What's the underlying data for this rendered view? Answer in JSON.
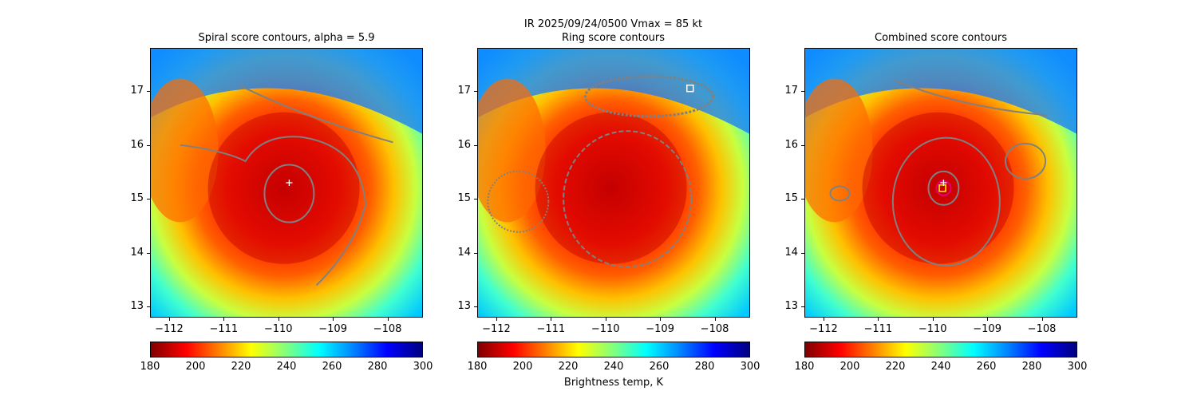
{
  "suptitle": {
    "line1": "IR  2025/09/24/0500    Vmax = 85 kt",
    "line2": "Ring score contours"
  },
  "colors": {
    "contour": "#808080",
    "marker_white": "#ffffff",
    "marker_magenta": "#e4007c",
    "marker_yellow": "#ffff00"
  },
  "chart_data": [
    {
      "type": "heatmap",
      "title": "Spiral score contours, alpha =  5.9",
      "xlim": [
        -112.35,
        -107.35
      ],
      "ylim": [
        12.8,
        17.8
      ],
      "xticks": [
        -112,
        -111,
        -110,
        -109,
        -108
      ],
      "yticks": [
        13,
        14,
        15,
        16,
        17
      ],
      "xticklabels": [
        "−112",
        "−111",
        "−110",
        "−109",
        "−108"
      ],
      "yticklabels": [
        "13",
        "14",
        "15",
        "16",
        "17"
      ],
      "colorbar": {
        "min": 180,
        "max": 300,
        "ticks": [
          180,
          200,
          220,
          240,
          260,
          280,
          300
        ],
        "colormap": "jet_r",
        "label": ""
      },
      "markers": [
        {
          "symbol": "+",
          "x": -109.8,
          "y": 15.3,
          "color": "white"
        }
      ]
    },
    {
      "type": "heatmap",
      "title": "",
      "xlim": [
        -112.35,
        -107.35
      ],
      "ylim": [
        12.8,
        17.8
      ],
      "xticks": [
        -112,
        -111,
        -110,
        -109,
        -108
      ],
      "yticks": [
        13,
        14,
        15,
        16,
        17
      ],
      "xticklabels": [
        "−112",
        "−111",
        "−110",
        "−109",
        "−108"
      ],
      "yticklabels": [
        "13",
        "14",
        "15",
        "16",
        "17"
      ],
      "colorbar": {
        "min": 180,
        "max": 300,
        "ticks": [
          180,
          200,
          220,
          240,
          260,
          280,
          300
        ],
        "colormap": "jet_r",
        "label": "Brightness temp, K"
      },
      "markers": [
        {
          "symbol": "square",
          "x": -108.45,
          "y": 17.05,
          "color": "white"
        }
      ]
    },
    {
      "type": "heatmap",
      "title": "Combined score contours",
      "xlim": [
        -112.35,
        -107.35
      ],
      "ylim": [
        12.8,
        17.8
      ],
      "xticks": [
        -112,
        -111,
        -110,
        -109,
        -108
      ],
      "yticks": [
        13,
        14,
        15,
        16,
        17
      ],
      "xticklabels": [
        "−112",
        "−111",
        "−110",
        "−109",
        "−108"
      ],
      "yticklabels": [
        "13",
        "14",
        "15",
        "16",
        "17"
      ],
      "colorbar": {
        "min": 180,
        "max": 300,
        "ticks": [
          180,
          200,
          220,
          240,
          260,
          280,
          300
        ],
        "colormap": "jet_r",
        "label": ""
      },
      "markers": [
        {
          "symbol": "circle",
          "x": -109.8,
          "y": 15.2,
          "color": "magenta"
        },
        {
          "symbol": "+",
          "x": -109.8,
          "y": 15.3,
          "color": "white"
        },
        {
          "symbol": "square",
          "x": -109.82,
          "y": 15.2,
          "color": "yellow"
        }
      ]
    }
  ]
}
